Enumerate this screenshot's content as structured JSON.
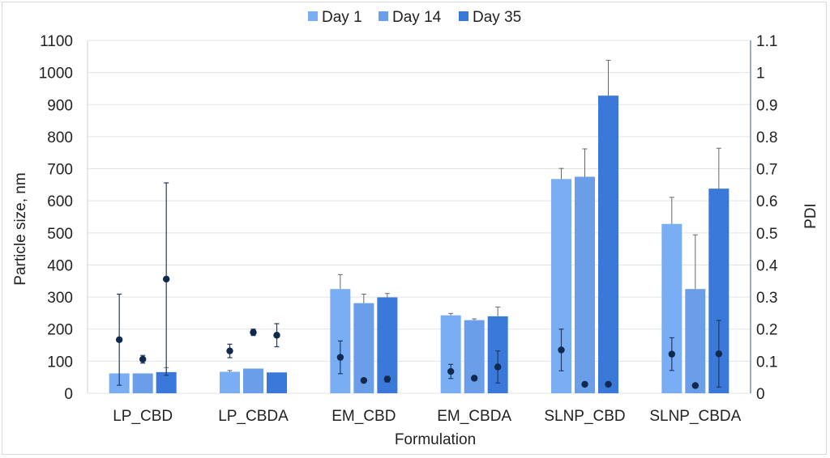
{
  "chart_data": {
    "type": "bar",
    "xlabel": "Formulation",
    "ylabel": "Particle size, nm",
    "y2label": "PDI",
    "ylim": [
      0,
      1100
    ],
    "y2lim": [
      0,
      1.1
    ],
    "yticks": [
      "0",
      "100",
      "200",
      "300",
      "400",
      "500",
      "600",
      "700",
      "800",
      "900",
      "1000",
      "1100"
    ],
    "y2ticks": [
      "0",
      "0.1",
      "0.2",
      "0.3",
      "0.4",
      "0.5",
      "0.6",
      "0.7",
      "0.8",
      "0.9",
      "1",
      "1.1"
    ],
    "grid": true,
    "legend_position": "top",
    "categories": [
      "LP_CBD",
      "LP_CBDA",
      "EM_CBD",
      "EM_CBDA",
      "SLNP_CBD",
      "SLNP_CBDA"
    ],
    "series": [
      {
        "name": "Day 1",
        "color": "#79aef5",
        "values": [
          62,
          67,
          325,
          243,
          668,
          528
        ],
        "errors": [
          0,
          4,
          45,
          6,
          33,
          83
        ],
        "pdi": [
          0.167,
          0.132,
          0.112,
          0.068,
          0.135,
          0.122
        ],
        "pdi_err": [
          0.142,
          0.021,
          0.051,
          0.022,
          0.065,
          0.051
        ]
      },
      {
        "name": "Day 14",
        "color": "#6b9ee8",
        "values": [
          62,
          77,
          281,
          228,
          675,
          325
        ],
        "errors": [
          0,
          0,
          28,
          4,
          87,
          169
        ],
        "pdi": [
          0.106,
          0.19,
          0.04,
          0.047,
          0.028,
          0.024
        ],
        "pdi_err": [
          0.012,
          0.01,
          0.006,
          0.006,
          0,
          0
        ]
      },
      {
        "name": "Day 35",
        "color": "#3a78d9",
        "values": [
          66,
          65,
          299,
          240,
          928,
          638
        ],
        "errors": [
          14,
          0,
          12,
          29,
          110,
          126
        ],
        "pdi": [
          0.356,
          0.181,
          0.044,
          0.082,
          0.028,
          0.123
        ],
        "pdi_err": [
          0.3,
          0.036,
          0.009,
          0.05,
          0,
          0.104
        ]
      }
    ]
  }
}
